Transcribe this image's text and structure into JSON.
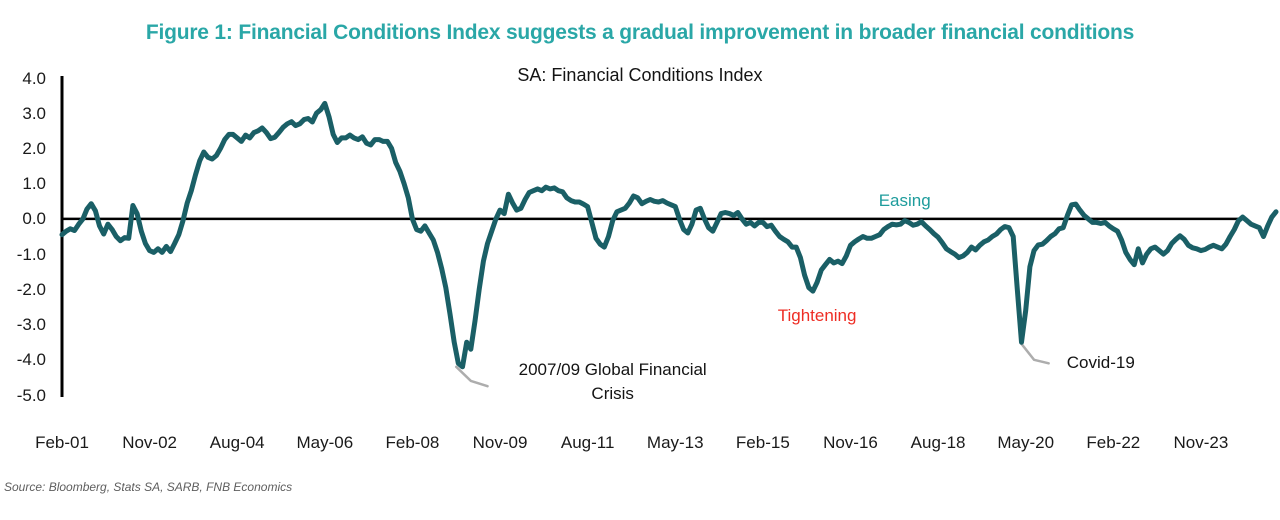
{
  "header": {
    "figure_title": "Figure 1: Financial Conditions Index suggests a gradual improvement in broader financial conditions"
  },
  "chart": {
    "title": "SA: Financial Conditions Index"
  },
  "source": {
    "text": "Source: Bloomberg, Stats SA, SARB, FNB Economics"
  },
  "colors": {
    "figure_title_teal": "#2AA7A7",
    "series_line_teal": "#1A5F66",
    "easing_teal": "#1E9C9C",
    "tightening_red": "#EE2D24",
    "leader_gray": "#ADADAD",
    "axis_black": "#000000",
    "source_gray": "#5E5E5E"
  },
  "annotations": {
    "easing": {
      "text": "Easing",
      "month": 202,
      "value": 0.5
    },
    "tightening": {
      "text": "Tightening",
      "month": 181,
      "value": -2.75
    },
    "gfc": {
      "text": "2007/09 Global Financial\nCrisis",
      "month": 132,
      "value": -4.62,
      "leader_months": [
        94.5,
        98,
        102
      ],
      "leader_values": [
        -4.2,
        -4.6,
        -4.75
      ]
    },
    "covid": {
      "text": "Covid-19",
      "month": 249,
      "value": -4.1,
      "leader_months": [
        230,
        233,
        236.5
      ],
      "leader_values": [
        -3.55,
        -4.0,
        -4.1
      ]
    }
  },
  "chart_data": {
    "type": "line",
    "title": "SA: Financial Conditions Index",
    "xlabel": "",
    "ylabel": "",
    "ylim": [
      -5.0,
      4.0
    ],
    "yticks": [
      4.0,
      3.0,
      2.0,
      1.0,
      0.0,
      -1.0,
      -2.0,
      -3.0,
      -4.0,
      -5.0
    ],
    "grid": "none",
    "legend": "none",
    "frequency": "monthly",
    "x_start": "Feb-2001",
    "x_end": "May-2025",
    "x_tick_labels": [
      "Feb-01",
      "Nov-02",
      "Aug-04",
      "May-06",
      "Feb-08",
      "Nov-09",
      "Aug-11",
      "May-13",
      "Feb-15",
      "Nov-16",
      "Aug-18",
      "May-20",
      "Feb-22",
      "Nov-23"
    ],
    "x_tick_months": [
      0,
      21,
      42,
      63,
      84,
      105,
      126,
      147,
      168,
      189,
      210,
      231,
      252,
      273
    ],
    "series_name": "Financial Conditions Index",
    "values_by_year": {
      "2001": [
        -0.45,
        -0.35,
        -0.28,
        -0.33,
        -0.15,
        0.0,
        0.28,
        0.43,
        0.23,
        -0.2,
        -0.43
      ],
      "2002": [
        -0.15,
        -0.3,
        -0.5,
        -0.62,
        -0.53,
        -0.55,
        0.38,
        0.15,
        -0.35,
        -0.7,
        -0.9,
        -0.95
      ],
      "2003": [
        -0.85,
        -0.95,
        -0.78,
        -0.93,
        -0.7,
        -0.45,
        -0.05,
        0.45,
        0.8,
        1.25,
        1.65,
        1.9
      ],
      "2004": [
        1.75,
        1.7,
        1.8,
        2.0,
        2.25,
        2.4,
        2.4,
        2.3,
        2.2,
        2.38,
        2.3,
        2.45
      ],
      "2005": [
        2.5,
        2.58,
        2.45,
        2.28,
        2.32,
        2.45,
        2.6,
        2.7,
        2.76,
        2.65,
        2.7,
        2.82
      ],
      "2006": [
        2.85,
        2.75,
        3.0,
        3.1,
        3.28,
        2.9,
        2.4,
        2.17,
        2.3,
        2.3,
        2.38,
        2.3
      ],
      "2007": [
        2.25,
        2.33,
        2.15,
        2.1,
        2.25,
        2.25,
        2.2,
        2.2,
        2.0,
        1.6,
        1.35,
        1.0
      ],
      "2008": [
        0.6,
        0.0,
        -0.3,
        -0.35,
        -0.2,
        -0.4,
        -0.6,
        -0.95,
        -1.4,
        -1.95,
        -2.7,
        -3.5
      ],
      "2009": [
        -4.1,
        -4.2,
        -3.5,
        -3.7,
        -2.9,
        -2.0,
        -1.2,
        -0.7,
        -0.35,
        0.0,
        0.25,
        0.15
      ],
      "2010": [
        0.7,
        0.45,
        0.25,
        0.3,
        0.55,
        0.75,
        0.8,
        0.85,
        0.8,
        0.9,
        0.85,
        0.88
      ],
      "2011": [
        0.8,
        0.77,
        0.6,
        0.52,
        0.48,
        0.48,
        0.42,
        0.35,
        -0.1,
        -0.55,
        -0.72,
        -0.8
      ],
      "2012": [
        -0.5,
        -0.05,
        0.2,
        0.25,
        0.3,
        0.45,
        0.65,
        0.6,
        0.43,
        0.5,
        0.55,
        0.5
      ],
      "2013": [
        0.48,
        0.52,
        0.45,
        0.4,
        0.35,
        0.0,
        -0.3,
        -0.4,
        -0.15,
        0.25,
        0.3,
        0.0
      ],
      "2014": [
        -0.25,
        -0.35,
        -0.1,
        0.15,
        0.18,
        0.15,
        0.1,
        0.18,
        0.0,
        -0.15,
        -0.1,
        -0.2
      ],
      "2015": [
        -0.1,
        -0.1,
        -0.22,
        -0.18,
        -0.35,
        -0.5,
        -0.58,
        -0.65,
        -0.8,
        -0.8,
        -1.1,
        -1.6
      ],
      "2016": [
        -1.95,
        -2.05,
        -1.8,
        -1.45,
        -1.3,
        -1.15,
        -1.25,
        -1.2,
        -1.27,
        -1.05,
        -0.75,
        -0.65
      ],
      "2017": [
        -0.57,
        -0.5,
        -0.55,
        -0.55,
        -0.5,
        -0.45,
        -0.3,
        -0.22,
        -0.15,
        -0.17,
        -0.15,
        -0.05
      ],
      "2018": [
        -0.1,
        -0.18,
        -0.15,
        -0.08,
        -0.2,
        -0.3,
        -0.42,
        -0.52,
        -0.68,
        -0.85,
        -0.93,
        -1.0
      ],
      "2019": [
        -1.1,
        -1.05,
        -0.95,
        -0.8,
        -0.88,
        -0.75,
        -0.65,
        -0.6,
        -0.5,
        -0.43,
        -0.3,
        -0.22
      ],
      "2020": [
        -0.25,
        -0.5,
        -2.0,
        -3.5,
        -2.6,
        -1.36,
        -0.9,
        -0.74,
        -0.72,
        -0.62,
        -0.5,
        -0.42
      ],
      "2021": [
        -0.28,
        -0.25,
        0.1,
        0.4,
        0.42,
        0.25,
        0.1,
        0.0,
        -0.1,
        -0.1,
        -0.13,
        -0.1
      ],
      "2022": [
        -0.2,
        -0.28,
        -0.35,
        -0.6,
        -0.95,
        -1.15,
        -1.3,
        -0.85,
        -1.25,
        -1.0,
        -0.85,
        -0.8
      ],
      "2023": [
        -0.9,
        -1.0,
        -0.9,
        -0.7,
        -0.58,
        -0.48,
        -0.58,
        -0.75,
        -0.82,
        -0.85,
        -0.9,
        -0.87
      ],
      "2024": [
        -0.8,
        -0.75,
        -0.8,
        -0.85,
        -0.72,
        -0.5,
        -0.3,
        -0.05,
        0.05,
        -0.05,
        -0.15,
        -0.2
      ],
      "2025": [
        -0.25,
        -0.5,
        -0.2,
        0.05,
        0.2
      ]
    }
  }
}
